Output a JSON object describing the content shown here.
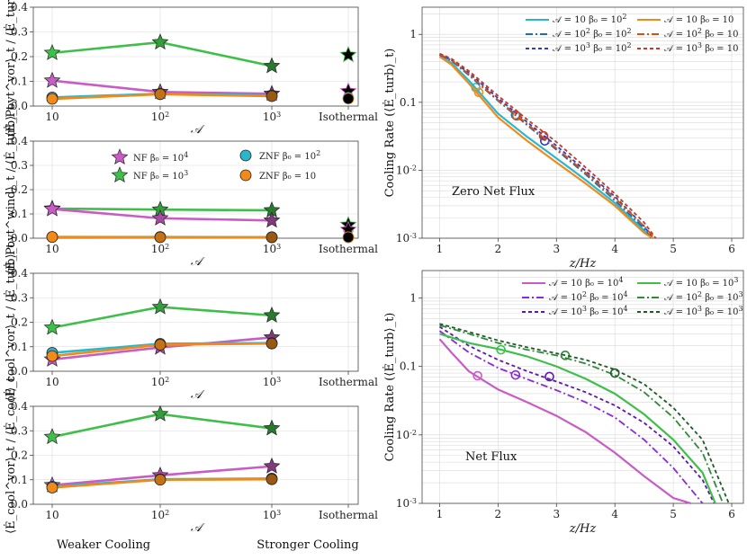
{
  "chart_data": {
    "left_panels": [
      {
        "id": "p1",
        "type": "line",
        "ylabel": "⟨Ė_Poyt^vor⟩_t / ⟨Ė_turb⟩_t",
        "xlabel": "𝒜",
        "ylim": [
          0,
          0.4
        ],
        "yticks": [
          "0.0",
          "0.1",
          "0.2",
          "0.3",
          "0.4"
        ],
        "series": [
          {
            "name": "NF β0 = 10^3",
            "marker": "star",
            "color": "#3fbf4a",
            "values": [
              0.215,
              0.258,
              0.162
            ],
            "iso": 0.207
          },
          {
            "name": "NF β0 = 10^4",
            "marker": "star",
            "color": "#c95cc4",
            "values": [
              0.103,
              0.057,
              0.05
            ],
            "iso": 0.06
          },
          {
            "name": "ZNF β0 = 10^2",
            "marker": "circle",
            "color": "#2ab7cc",
            "values": [
              0.035,
              0.05,
              0.043
            ],
            "iso": 0.033
          },
          {
            "name": "ZNF β0 = 10",
            "marker": "circle",
            "color": "#f08a1a",
            "values": [
              0.029,
              0.048,
              0.04
            ],
            "iso": 0.03
          }
        ]
      },
      {
        "id": "p2",
        "type": "line",
        "ylabel": "⟨Ė_Poyt^wind⟩_t / ⟨Ė_turb⟩_t",
        "xlabel": "𝒜",
        "ylim": [
          0,
          0.4
        ],
        "yticks": [
          "0.0",
          "0.1",
          "0.2",
          "0.3",
          "0.4"
        ],
        "series": [
          {
            "name": "NF β0 = 10^3",
            "marker": "star",
            "color": "#3fbf4a",
            "values": [
              0.122,
              0.118,
              0.115
            ],
            "iso": 0.055
          },
          {
            "name": "NF β0 = 10^4",
            "marker": "star",
            "color": "#c95cc4",
            "values": [
              0.12,
              0.082,
              0.073
            ],
            "iso": 0.035
          },
          {
            "name": "ZNF β0 = 10^2",
            "marker": "circle",
            "color": "#2ab7cc",
            "values": [
              0.005,
              0.005,
              0.004
            ],
            "iso": 0.004
          },
          {
            "name": "ZNF β0 = 10",
            "marker": "circle",
            "color": "#f08a1a",
            "values": [
              0.005,
              0.004,
              0.004
            ],
            "iso": 0.004
          }
        ],
        "legend": [
          "NF β0 = 10^4",
          "NF β0 = 10^3",
          "ZNF β0 = 10^2",
          "ZNF β0 = 10"
        ]
      },
      {
        "id": "p3",
        "type": "line",
        "ylabel": "⟨Ė_cool^vor⟩_t / ⟨Ė_turb⟩_t",
        "xlabel": "𝒜",
        "ylim": [
          0,
          0.4
        ],
        "yticks": [
          "0.0",
          "0.1",
          "0.2",
          "0.3",
          "0.4"
        ],
        "series": [
          {
            "name": "NF β0 = 10^3",
            "marker": "star",
            "color": "#3fbf4a",
            "values": [
              0.178,
              0.262,
              0.228
            ]
          },
          {
            "name": "NF β0 = 10^4",
            "marker": "star",
            "color": "#c95cc4",
            "values": [
              0.048,
              0.097,
              0.138
            ]
          },
          {
            "name": "ZNF β0 = 10^2",
            "marker": "circle",
            "color": "#2ab7cc",
            "values": [
              0.075,
              0.112,
              0.115
            ]
          },
          {
            "name": "ZNF β0 = 10",
            "marker": "circle",
            "color": "#f08a1a",
            "values": [
              0.062,
              0.108,
              0.113
            ]
          }
        ]
      },
      {
        "id": "p4",
        "type": "line",
        "ylabel": "⟨Ė_cool^vor⟩_t / ⟨Ė_cool⟩_t",
        "xlabel": "𝒜",
        "ylim": [
          0,
          0.4
        ],
        "yticks": [
          "0.0",
          "0.1",
          "0.2",
          "0.3",
          "0.4"
        ],
        "series": [
          {
            "name": "NF β0 = 10^3",
            "marker": "star",
            "color": "#3fbf4a",
            "values": [
              0.275,
              0.368,
              0.31
            ]
          },
          {
            "name": "NF β0 = 10^4",
            "marker": "star",
            "color": "#c95cc4",
            "values": [
              0.078,
              0.118,
              0.155
            ]
          },
          {
            "name": "ZNF β0 = 10^2",
            "marker": "circle",
            "color": "#2ab7cc",
            "values": [
              0.072,
              0.102,
              0.105
            ]
          },
          {
            "name": "ZNF β0 = 10",
            "marker": "circle",
            "color": "#f08a1a",
            "values": [
              0.068,
              0.1,
              0.102
            ]
          }
        ]
      }
    ],
    "x_categories": [
      "10",
      "10^2",
      "10^3",
      "Isothermal"
    ],
    "bottom_notes": [
      "Weaker Cooling",
      "Stronger Cooling"
    ],
    "right_panels": [
      {
        "id": "r1",
        "type": "line",
        "title_annotation": "Zero Net Flux",
        "xlabel": "z/H_z",
        "ylabel": "Cooling Rate (⟨Ė_turb⟩_t)",
        "xlim": [
          0.7,
          6.2
        ],
        "ylim_log10": [
          -3,
          0.4
        ],
        "xticks": [
          "1",
          "2",
          "3",
          "4",
          "5",
          "6"
        ],
        "yticks": [
          "10^-3",
          "10^-2",
          "0.1",
          "1"
        ],
        "legend": [
          "𝒜 = 10 β0 = 10^2",
          "𝒜 = 10^2 β0 = 10^2",
          "𝒜 = 10^3 β0 = 10^2",
          "𝒜 = 10 β0 = 10",
          "𝒜 = 10^2 β0 = 10",
          "𝒜 = 10^3 β0 = 10"
        ],
        "series": [
          {
            "name": "𝒜 = 10 β0 = 10^2",
            "color": "#2ab7cc",
            "dash": "solid",
            "x": [
              1.0,
              1.2,
              1.5,
              2.0,
              2.5,
              3.0,
              3.5,
              4.0,
              4.5,
              4.65
            ],
            "y": [
              0.48,
              0.38,
              0.21,
              0.068,
              0.031,
              0.015,
              0.0072,
              0.0033,
              0.0013,
              0.001
            ],
            "circle": [
              1.62,
              0.165
            ]
          },
          {
            "name": "𝒜 = 10^2 β0 = 10^2",
            "color": "#1f6fb5",
            "dash": "dashdot",
            "x": [
              1.0,
              1.2,
              1.5,
              2.0,
              2.5,
              3.0,
              3.5,
              4.0,
              4.5,
              4.62
            ],
            "y": [
              0.5,
              0.41,
              0.25,
              0.105,
              0.046,
              0.02,
              0.0087,
              0.0036,
              0.0014,
              0.001
            ],
            "circle": [
              2.3,
              0.065
            ]
          },
          {
            "name": "𝒜 = 10^3 β0 = 10^2",
            "color": "#2b3fbf",
            "dash": "dashed",
            "x": [
              1.0,
              1.2,
              1.5,
              2.0,
              2.5,
              3.0,
              3.5,
              4.0,
              4.5,
              4.65
            ],
            "y": [
              0.5,
              0.42,
              0.27,
              0.115,
              0.051,
              0.023,
              0.0098,
              0.0041,
              0.0015,
              0.001
            ],
            "circle": [
              2.8,
              0.027
            ]
          },
          {
            "name": "𝒜 = 10 β0 = 10",
            "color": "#f08a1a",
            "dash": "solid",
            "x": [
              1.0,
              1.2,
              1.5,
              2.0,
              2.5,
              3.0,
              3.5,
              4.0,
              4.5,
              4.65
            ],
            "y": [
              0.47,
              0.36,
              0.19,
              0.06,
              0.027,
              0.013,
              0.0064,
              0.003,
              0.0012,
              0.001
            ],
            "circle": [
              1.67,
              0.14
            ]
          },
          {
            "name": "𝒜 = 10^2 β0 = 10",
            "color": "#d95010",
            "dash": "dashdot",
            "x": [
              1.0,
              1.2,
              1.5,
              2.0,
              2.5,
              3.0,
              3.5,
              4.0,
              4.5,
              4.68
            ],
            "y": [
              0.51,
              0.42,
              0.26,
              0.108,
              0.048,
              0.021,
              0.0092,
              0.0039,
              0.0015,
              0.001
            ],
            "circle": [
              2.32,
              0.063
            ]
          },
          {
            "name": "𝒜 = 10^3 β0 = 10",
            "color": "#c0392b",
            "dash": "dashed",
            "x": [
              1.0,
              1.2,
              1.5,
              2.0,
              2.5,
              3.0,
              3.5,
              4.0,
              4.5,
              4.7
            ],
            "y": [
              0.52,
              0.44,
              0.29,
              0.125,
              0.056,
              0.026,
              0.011,
              0.0045,
              0.0017,
              0.001
            ],
            "circle": [
              2.78,
              0.032
            ]
          }
        ]
      },
      {
        "id": "r2",
        "type": "line",
        "title_annotation": "Net Flux",
        "xlabel": "z/H_z",
        "ylabel": "Cooling Rate (⟨Ė_turb⟩_t)",
        "xlim": [
          0.7,
          6.2
        ],
        "ylim_log10": [
          -3,
          0.4
        ],
        "xticks": [
          "1",
          "2",
          "3",
          "4",
          "5",
          "6"
        ],
        "yticks": [
          "10^-3",
          "10^-2",
          "0.1",
          "1"
        ],
        "legend": [
          "𝒜 = 10 β0 = 10^4",
          "𝒜 = 10^2 β0 = 10^4",
          "𝒜 = 10^3 β0 = 10^4",
          "𝒜 = 10 β0 = 10^3",
          "𝒜 = 10^2 β0 = 10^3",
          "𝒜 = 10^3 β0 = 10^3"
        ],
        "series": [
          {
            "name": "𝒜 = 10 β0 = 10^4",
            "color": "#c95cc4",
            "dash": "solid",
            "x": [
              1.0,
              1.2,
              1.5,
              2.0,
              2.5,
              3.0,
              3.5,
              4.0,
              4.5,
              5.0,
              5.3
            ],
            "y": [
              0.25,
              0.16,
              0.085,
              0.046,
              0.03,
              0.019,
              0.011,
              0.0055,
              0.0025,
              0.0012,
              0.001
            ],
            "circle": [
              1.65,
              0.073
            ]
          },
          {
            "name": "𝒜 = 10^2 β0 = 10^4",
            "color": "#8a2bd6",
            "dash": "dashdot",
            "x": [
              1.0,
              1.5,
              2.0,
              2.5,
              3.0,
              3.5,
              4.0,
              4.5,
              5.0,
              5.5
            ],
            "y": [
              0.33,
              0.16,
              0.095,
              0.065,
              0.045,
              0.03,
              0.018,
              0.0085,
              0.0033,
              0.001
            ],
            "circle": [
              2.3,
              0.075
            ]
          },
          {
            "name": "𝒜 = 10^3 β0 = 10^4",
            "color": "#5a1aa8",
            "dash": "dashed",
            "x": [
              1.0,
              1.5,
              2.0,
              2.5,
              3.0,
              3.5,
              4.0,
              4.5,
              5.0,
              5.5,
              5.7
            ],
            "y": [
              0.38,
              0.2,
              0.125,
              0.085,
              0.06,
              0.042,
              0.027,
              0.015,
              0.0068,
              0.0022,
              0.001
            ],
            "circle": [
              2.88,
              0.071
            ]
          },
          {
            "name": "𝒜 = 10 β0 = 10^3",
            "color": "#3fbf4a",
            "dash": "solid",
            "x": [
              1.0,
              1.5,
              2.0,
              2.5,
              3.0,
              3.5,
              4.0,
              4.5,
              5.0,
              5.5,
              5.72
            ],
            "y": [
              0.3,
              0.22,
              0.18,
              0.14,
              0.1,
              0.066,
              0.04,
              0.02,
              0.0085,
              0.0028,
              0.001
            ],
            "circle": [
              2.05,
              0.175
            ]
          },
          {
            "name": "𝒜 = 10^2 β0 = 10^3",
            "color": "#2f8a3a",
            "dash": "dashdot",
            "x": [
              1.0,
              1.5,
              2.0,
              2.5,
              3.0,
              3.5,
              4.0,
              4.5,
              5.0,
              5.5,
              5.85
            ],
            "y": [
              0.4,
              0.3,
              0.22,
              0.175,
              0.145,
              0.11,
              0.075,
              0.042,
              0.018,
              0.0055,
              0.001
            ],
            "circle": [
              3.15,
              0.145
            ]
          },
          {
            "name": "𝒜 = 10^3 β0 = 10^3",
            "color": "#1f5a26",
            "dash": "dashed",
            "x": [
              1.0,
              1.5,
              2.0,
              2.5,
              3.0,
              3.5,
              4.0,
              4.5,
              5.0,
              5.5,
              5.95
            ],
            "y": [
              0.42,
              0.32,
              0.24,
              0.19,
              0.155,
              0.125,
              0.09,
              0.055,
              0.025,
              0.0085,
              0.001
            ],
            "circle": [
              4.0,
              0.08
            ]
          }
        ]
      }
    ]
  }
}
